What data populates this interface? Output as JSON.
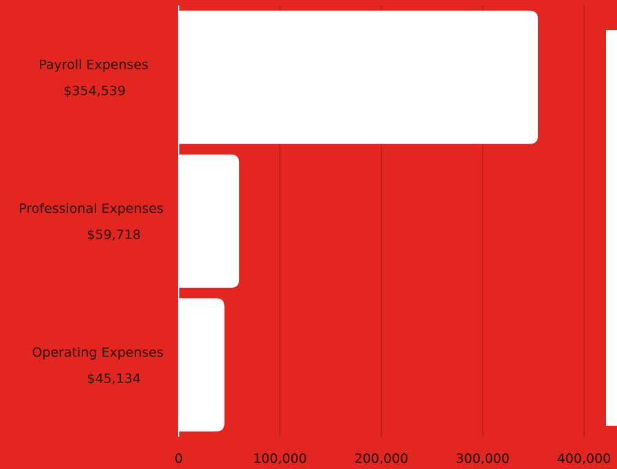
{
  "chart_data": {
    "type": "bar",
    "orientation": "horizontal",
    "categories": [
      "Payroll Expenses",
      "Professional Expenses",
      "Operating Expenses"
    ],
    "value_labels": [
      "$354,539",
      "$59,718",
      "$45,134"
    ],
    "values": [
      354539,
      59718,
      45134
    ],
    "xlim": [
      0,
      400000
    ],
    "x_ticks": [
      "0",
      "100,000",
      "200,000",
      "300,000",
      "400,000"
    ],
    "grid": "vertical",
    "colors": {
      "background": "#e3261f",
      "bars": "#ffffff",
      "grid": "#b51d18",
      "text": "#2a1010"
    }
  }
}
